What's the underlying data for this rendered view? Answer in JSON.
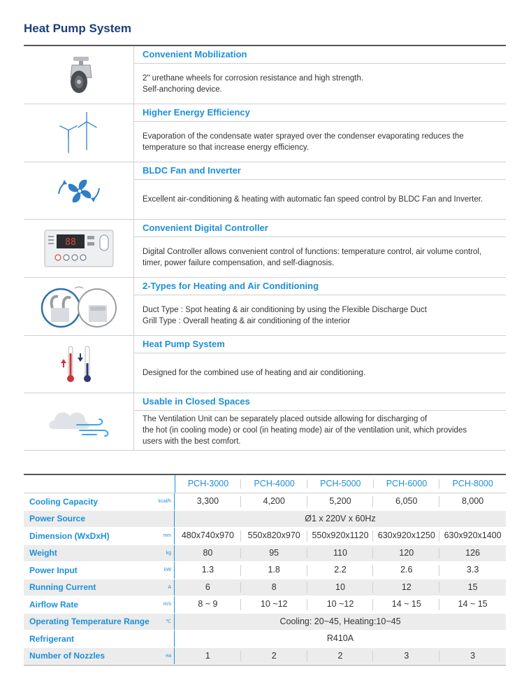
{
  "title": "Heat Pump System",
  "features": [
    {
      "icon": "caster-wheel-icon",
      "heading": "Convenient Mobilization",
      "body": "2\" urethane wheels for corrosion resistance and high strength.\nSelf-anchoring device."
    },
    {
      "icon": "wind-turbine-icon",
      "heading": "Higher Energy Efficiency",
      "body": "Evaporation of the condensate water sprayed over the condenser evaporating reduces the\ntemperature so that increase energy efficiency."
    },
    {
      "icon": "fan-icon",
      "heading": "BLDC Fan and Inverter",
      "body": "Excellent air-conditioning & heating with automatic fan speed control by BLDC Fan and Inverter."
    },
    {
      "icon": "digital-controller-icon",
      "heading": "Convenient Digital Controller",
      "body": "Digital Controller allows convenient control of functions: temperature control, air volume control,\ntimer, power failure compensation, and self-diagnosis."
    },
    {
      "icon": "duct-grill-types-icon",
      "heading": "2-Types for Heating and Air Conditioning",
      "body": "Duct Type : Spot heating & air conditioning by using the Flexible Discharge Duct\nGrill Type : Overall heating & air conditioning of the interior"
    },
    {
      "icon": "thermometer-icon",
      "heading": "Heat Pump System",
      "body": "Designed for the combined use of heating and air conditioning."
    },
    {
      "icon": "cloud-wind-icon",
      "heading": "Usable in Closed Spaces",
      "body": "The Ventilation Unit can be separately placed outside allowing for discharging of\nthe hot (in cooling mode) or cool (in heating mode) air of the ventilation unit, which provides\nusers with the best comfort."
    }
  ],
  "specs": {
    "models": [
      "PCH-3000",
      "PCH-4000",
      "PCH-5000",
      "PCH-6000",
      "PCH-8000"
    ],
    "rows": [
      {
        "name": "Cooling Capacity",
        "unit": "kcal/h",
        "values": [
          "3,300",
          "4,200",
          "5,200",
          "6,050",
          "8,000"
        ],
        "span": ""
      },
      {
        "name": "Power Source",
        "unit": "",
        "values": [],
        "span": "Ø1 x 220V x 60Hz"
      },
      {
        "name": "Dimension (WxDxH)",
        "unit": "mm",
        "values": [
          "480x740x970",
          "550x820x970",
          "550x920x1120",
          "630x920x1250",
          "630x920x1400"
        ],
        "span": ""
      },
      {
        "name": "Weight",
        "unit": "kg",
        "values": [
          "80",
          "95",
          "110",
          "120",
          "126"
        ],
        "span": ""
      },
      {
        "name": "Power Input",
        "unit": "kW",
        "values": [
          "1.3",
          "1.8",
          "2.2",
          "2.6",
          "3.3"
        ],
        "span": ""
      },
      {
        "name": "Running Current",
        "unit": "A",
        "values": [
          "6",
          "8",
          "10",
          "12",
          "15"
        ],
        "span": ""
      },
      {
        "name": "Airflow Rate",
        "unit": "m/s",
        "values": [
          "8 ~ 9",
          "10 ~12",
          "10 ~12",
          "14 ~ 15",
          "14 ~ 15"
        ],
        "span": ""
      },
      {
        "name": "Operating Temperature Range",
        "unit": "℃",
        "values": [],
        "span": "Cooling: 20~45,  Heating:10~45"
      },
      {
        "name": "Refrigerant",
        "unit": "",
        "values": [],
        "span": "R410A"
      },
      {
        "name": "Number of Nozzles",
        "unit": "ea",
        "values": [
          "1",
          "2",
          "2",
          "3",
          "3"
        ],
        "span": ""
      }
    ]
  }
}
